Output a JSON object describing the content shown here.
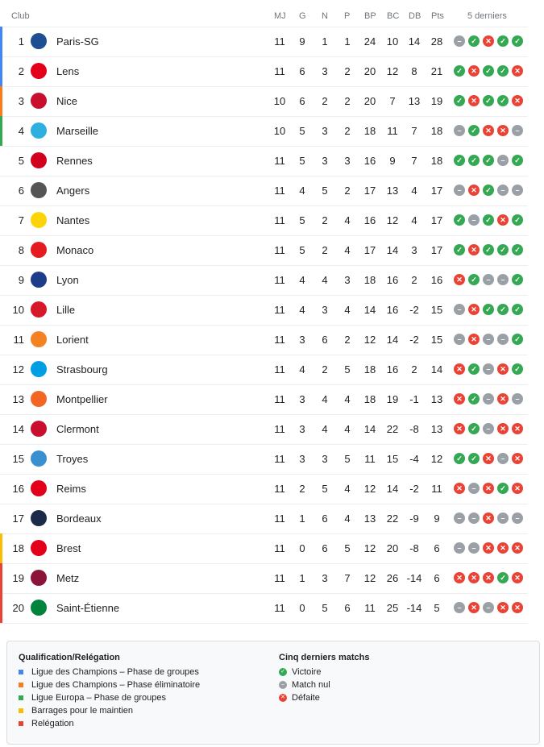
{
  "headers": {
    "club": "Club",
    "mj": "MJ",
    "g": "G",
    "n": "N",
    "p": "P",
    "bp": "BP",
    "bc": "BC",
    "db": "DB",
    "pts": "Pts",
    "form": "5 derniers"
  },
  "colors": {
    "cl": "#4285f4",
    "clq": "#fa7b17",
    "el": "#34a853",
    "playoff": "#fbbc04",
    "releg": "#ea4335",
    "win": "#34a853",
    "draw": "#9aa0a6",
    "loss": "#ea4335"
  },
  "rows": [
    {
      "rank": "1",
      "club": "Paris-SG",
      "mj": "11",
      "g": "9",
      "n": "1",
      "p": "1",
      "bp": "24",
      "bc": "10",
      "db": "14",
      "pts": "28",
      "form": "DWLWW",
      "zone": "cl",
      "logo": "#1d4f91"
    },
    {
      "rank": "2",
      "club": "Lens",
      "mj": "11",
      "g": "6",
      "n": "3",
      "p": "2",
      "bp": "20",
      "bc": "12",
      "db": "8",
      "pts": "21",
      "form": "WLWWL",
      "zone": "cl",
      "logo": "#e2001a"
    },
    {
      "rank": "3",
      "club": "Nice",
      "mj": "10",
      "g": "6",
      "n": "2",
      "p": "2",
      "bp": "20",
      "bc": "7",
      "db": "13",
      "pts": "19",
      "form": "WLWWL",
      "zone": "clq",
      "logo": "#c8102e"
    },
    {
      "rank": "4",
      "club": "Marseille",
      "mj": "10",
      "g": "5",
      "n": "3",
      "p": "2",
      "bp": "18",
      "bc": "11",
      "db": "7",
      "pts": "18",
      "form": "DWLLD",
      "zone": "el",
      "logo": "#2faee0"
    },
    {
      "rank": "5",
      "club": "Rennes",
      "mj": "11",
      "g": "5",
      "n": "3",
      "p": "3",
      "bp": "16",
      "bc": "9",
      "db": "7",
      "pts": "18",
      "form": "WWWDW",
      "zone": "",
      "logo": "#d2001f"
    },
    {
      "rank": "6",
      "club": "Angers",
      "mj": "11",
      "g": "4",
      "n": "5",
      "p": "2",
      "bp": "17",
      "bc": "13",
      "db": "4",
      "pts": "17",
      "form": "DLWDD",
      "zone": "",
      "logo": "#555555"
    },
    {
      "rank": "7",
      "club": "Nantes",
      "mj": "11",
      "g": "5",
      "n": "2",
      "p": "4",
      "bp": "16",
      "bc": "12",
      "db": "4",
      "pts": "17",
      "form": "WDWLW",
      "zone": "",
      "logo": "#fcd405"
    },
    {
      "rank": "8",
      "club": "Monaco",
      "mj": "11",
      "g": "5",
      "n": "2",
      "p": "4",
      "bp": "17",
      "bc": "14",
      "db": "3",
      "pts": "17",
      "form": "WLWWW",
      "zone": "",
      "logo": "#e51b22"
    },
    {
      "rank": "9",
      "club": "Lyon",
      "mj": "11",
      "g": "4",
      "n": "4",
      "p": "3",
      "bp": "18",
      "bc": "16",
      "db": "2",
      "pts": "16",
      "form": "LWDDW",
      "zone": "",
      "logo": "#1e3c8c"
    },
    {
      "rank": "10",
      "club": "Lille",
      "mj": "11",
      "g": "4",
      "n": "3",
      "p": "4",
      "bp": "14",
      "bc": "16",
      "db": "-2",
      "pts": "15",
      "form": "DLWWW",
      "zone": "",
      "logo": "#d7182a"
    },
    {
      "rank": "11",
      "club": "Lorient",
      "mj": "11",
      "g": "3",
      "n": "6",
      "p": "2",
      "bp": "12",
      "bc": "14",
      "db": "-2",
      "pts": "15",
      "form": "DLDDW",
      "zone": "",
      "logo": "#f58220"
    },
    {
      "rank": "12",
      "club": "Strasbourg",
      "mj": "11",
      "g": "4",
      "n": "2",
      "p": "5",
      "bp": "18",
      "bc": "16",
      "db": "2",
      "pts": "14",
      "form": "LWDLW",
      "zone": "",
      "logo": "#009fe3"
    },
    {
      "rank": "13",
      "club": "Montpellier",
      "mj": "11",
      "g": "3",
      "n": "4",
      "p": "4",
      "bp": "18",
      "bc": "19",
      "db": "-1",
      "pts": "13",
      "form": "LWDLD",
      "zone": "",
      "logo": "#f26522"
    },
    {
      "rank": "14",
      "club": "Clermont",
      "mj": "11",
      "g": "3",
      "n": "4",
      "p": "4",
      "bp": "14",
      "bc": "22",
      "db": "-8",
      "pts": "13",
      "form": "LWDLL",
      "zone": "",
      "logo": "#c8102e"
    },
    {
      "rank": "15",
      "club": "Troyes",
      "mj": "11",
      "g": "3",
      "n": "3",
      "p": "5",
      "bp": "11",
      "bc": "15",
      "db": "-4",
      "pts": "12",
      "form": "WWLDL",
      "zone": "",
      "logo": "#3a8fd1"
    },
    {
      "rank": "16",
      "club": "Reims",
      "mj": "11",
      "g": "2",
      "n": "5",
      "p": "4",
      "bp": "12",
      "bc": "14",
      "db": "-2",
      "pts": "11",
      "form": "LDLWL",
      "zone": "",
      "logo": "#e2001a"
    },
    {
      "rank": "17",
      "club": "Bordeaux",
      "mj": "11",
      "g": "1",
      "n": "6",
      "p": "4",
      "bp": "13",
      "bc": "22",
      "db": "-9",
      "pts": "9",
      "form": "DDLDD",
      "zone": "",
      "logo": "#1b2a4a"
    },
    {
      "rank": "18",
      "club": "Brest",
      "mj": "11",
      "g": "0",
      "n": "6",
      "p": "5",
      "bp": "12",
      "bc": "20",
      "db": "-8",
      "pts": "6",
      "form": "DDLLL",
      "zone": "playoff",
      "logo": "#e2001a"
    },
    {
      "rank": "19",
      "club": "Metz",
      "mj": "11",
      "g": "1",
      "n": "3",
      "p": "7",
      "bp": "12",
      "bc": "26",
      "db": "-14",
      "pts": "6",
      "form": "LLLWL",
      "zone": "releg",
      "logo": "#8a1538"
    },
    {
      "rank": "20",
      "club": "Saint-Étienne",
      "mj": "11",
      "g": "0",
      "n": "5",
      "p": "6",
      "bp": "11",
      "bc": "25",
      "db": "-14",
      "pts": "5",
      "form": "DLDLL",
      "zone": "releg",
      "logo": "#00843d"
    }
  ],
  "legend": {
    "qual_title": "Qualification/Relégation",
    "qual": [
      {
        "label": "Ligue des Champions – Phase de groupes",
        "zone": "cl"
      },
      {
        "label": "Ligue des Champions – Phase éliminatoire",
        "zone": "clq"
      },
      {
        "label": "Ligue Europa – Phase de groupes",
        "zone": "el"
      },
      {
        "label": "Barrages pour le maintien",
        "zone": "playoff"
      },
      {
        "label": "Relégation",
        "zone": "releg"
      }
    ],
    "form_title": "Cinq derniers matchs",
    "form": [
      {
        "label": "Victoire",
        "code": "W"
      },
      {
        "label": "Match nul",
        "code": "D"
      },
      {
        "label": "Défaite",
        "code": "L"
      }
    ]
  }
}
